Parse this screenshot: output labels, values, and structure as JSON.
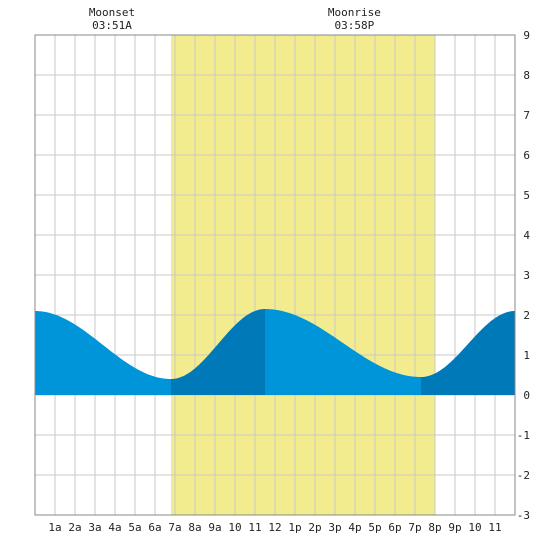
{
  "annotations": {
    "moonset_label": "Moonset",
    "moonset_time": "03:51A",
    "moonset_hour": 3.85,
    "moonrise_label": "Moonrise",
    "moonrise_time": "03:58P",
    "moonrise_hour": 15.97
  },
  "colors": {
    "daylight": "#f3ec8f",
    "tide_fill": "#0095d9",
    "tide_rising": "#0079b9",
    "grid": "#c8c8c8",
    "frame": "#888888"
  },
  "chart_data": {
    "type": "area",
    "xlim": [
      0,
      24
    ],
    "ylim": [
      -3,
      9
    ],
    "x_ticks": [
      {
        "x": 1,
        "label": "1a"
      },
      {
        "x": 2,
        "label": "2a"
      },
      {
        "x": 3,
        "label": "3a"
      },
      {
        "x": 4,
        "label": "4a"
      },
      {
        "x": 5,
        "label": "5a"
      },
      {
        "x": 6,
        "label": "6a"
      },
      {
        "x": 7,
        "label": "7a"
      },
      {
        "x": 8,
        "label": "8a"
      },
      {
        "x": 9,
        "label": "9a"
      },
      {
        "x": 10,
        "label": "10"
      },
      {
        "x": 11,
        "label": "11"
      },
      {
        "x": 12,
        "label": "12"
      },
      {
        "x": 13,
        "label": "1p"
      },
      {
        "x": 14,
        "label": "2p"
      },
      {
        "x": 15,
        "label": "3p"
      },
      {
        "x": 16,
        "label": "4p"
      },
      {
        "x": 17,
        "label": "5p"
      },
      {
        "x": 18,
        "label": "6p"
      },
      {
        "x": 19,
        "label": "7p"
      },
      {
        "x": 20,
        "label": "8p"
      },
      {
        "x": 21,
        "label": "9p"
      },
      {
        "x": 22,
        "label": "10"
      },
      {
        "x": 23,
        "label": "11"
      }
    ],
    "y_ticks": [
      -3,
      -2,
      -1,
      0,
      1,
      2,
      3,
      4,
      5,
      6,
      7,
      8,
      9
    ],
    "daylight": [
      6.8,
      20.0
    ],
    "tide_extremes": [
      {
        "hour": 0.0,
        "height": 2.1
      },
      {
        "hour": 6.8,
        "height": 0.4
      },
      {
        "hour": 11.5,
        "height": 2.15
      },
      {
        "hour": 19.3,
        "height": 0.45
      },
      {
        "hour": 24.0,
        "height": 2.1
      }
    ],
    "grid": true
  }
}
